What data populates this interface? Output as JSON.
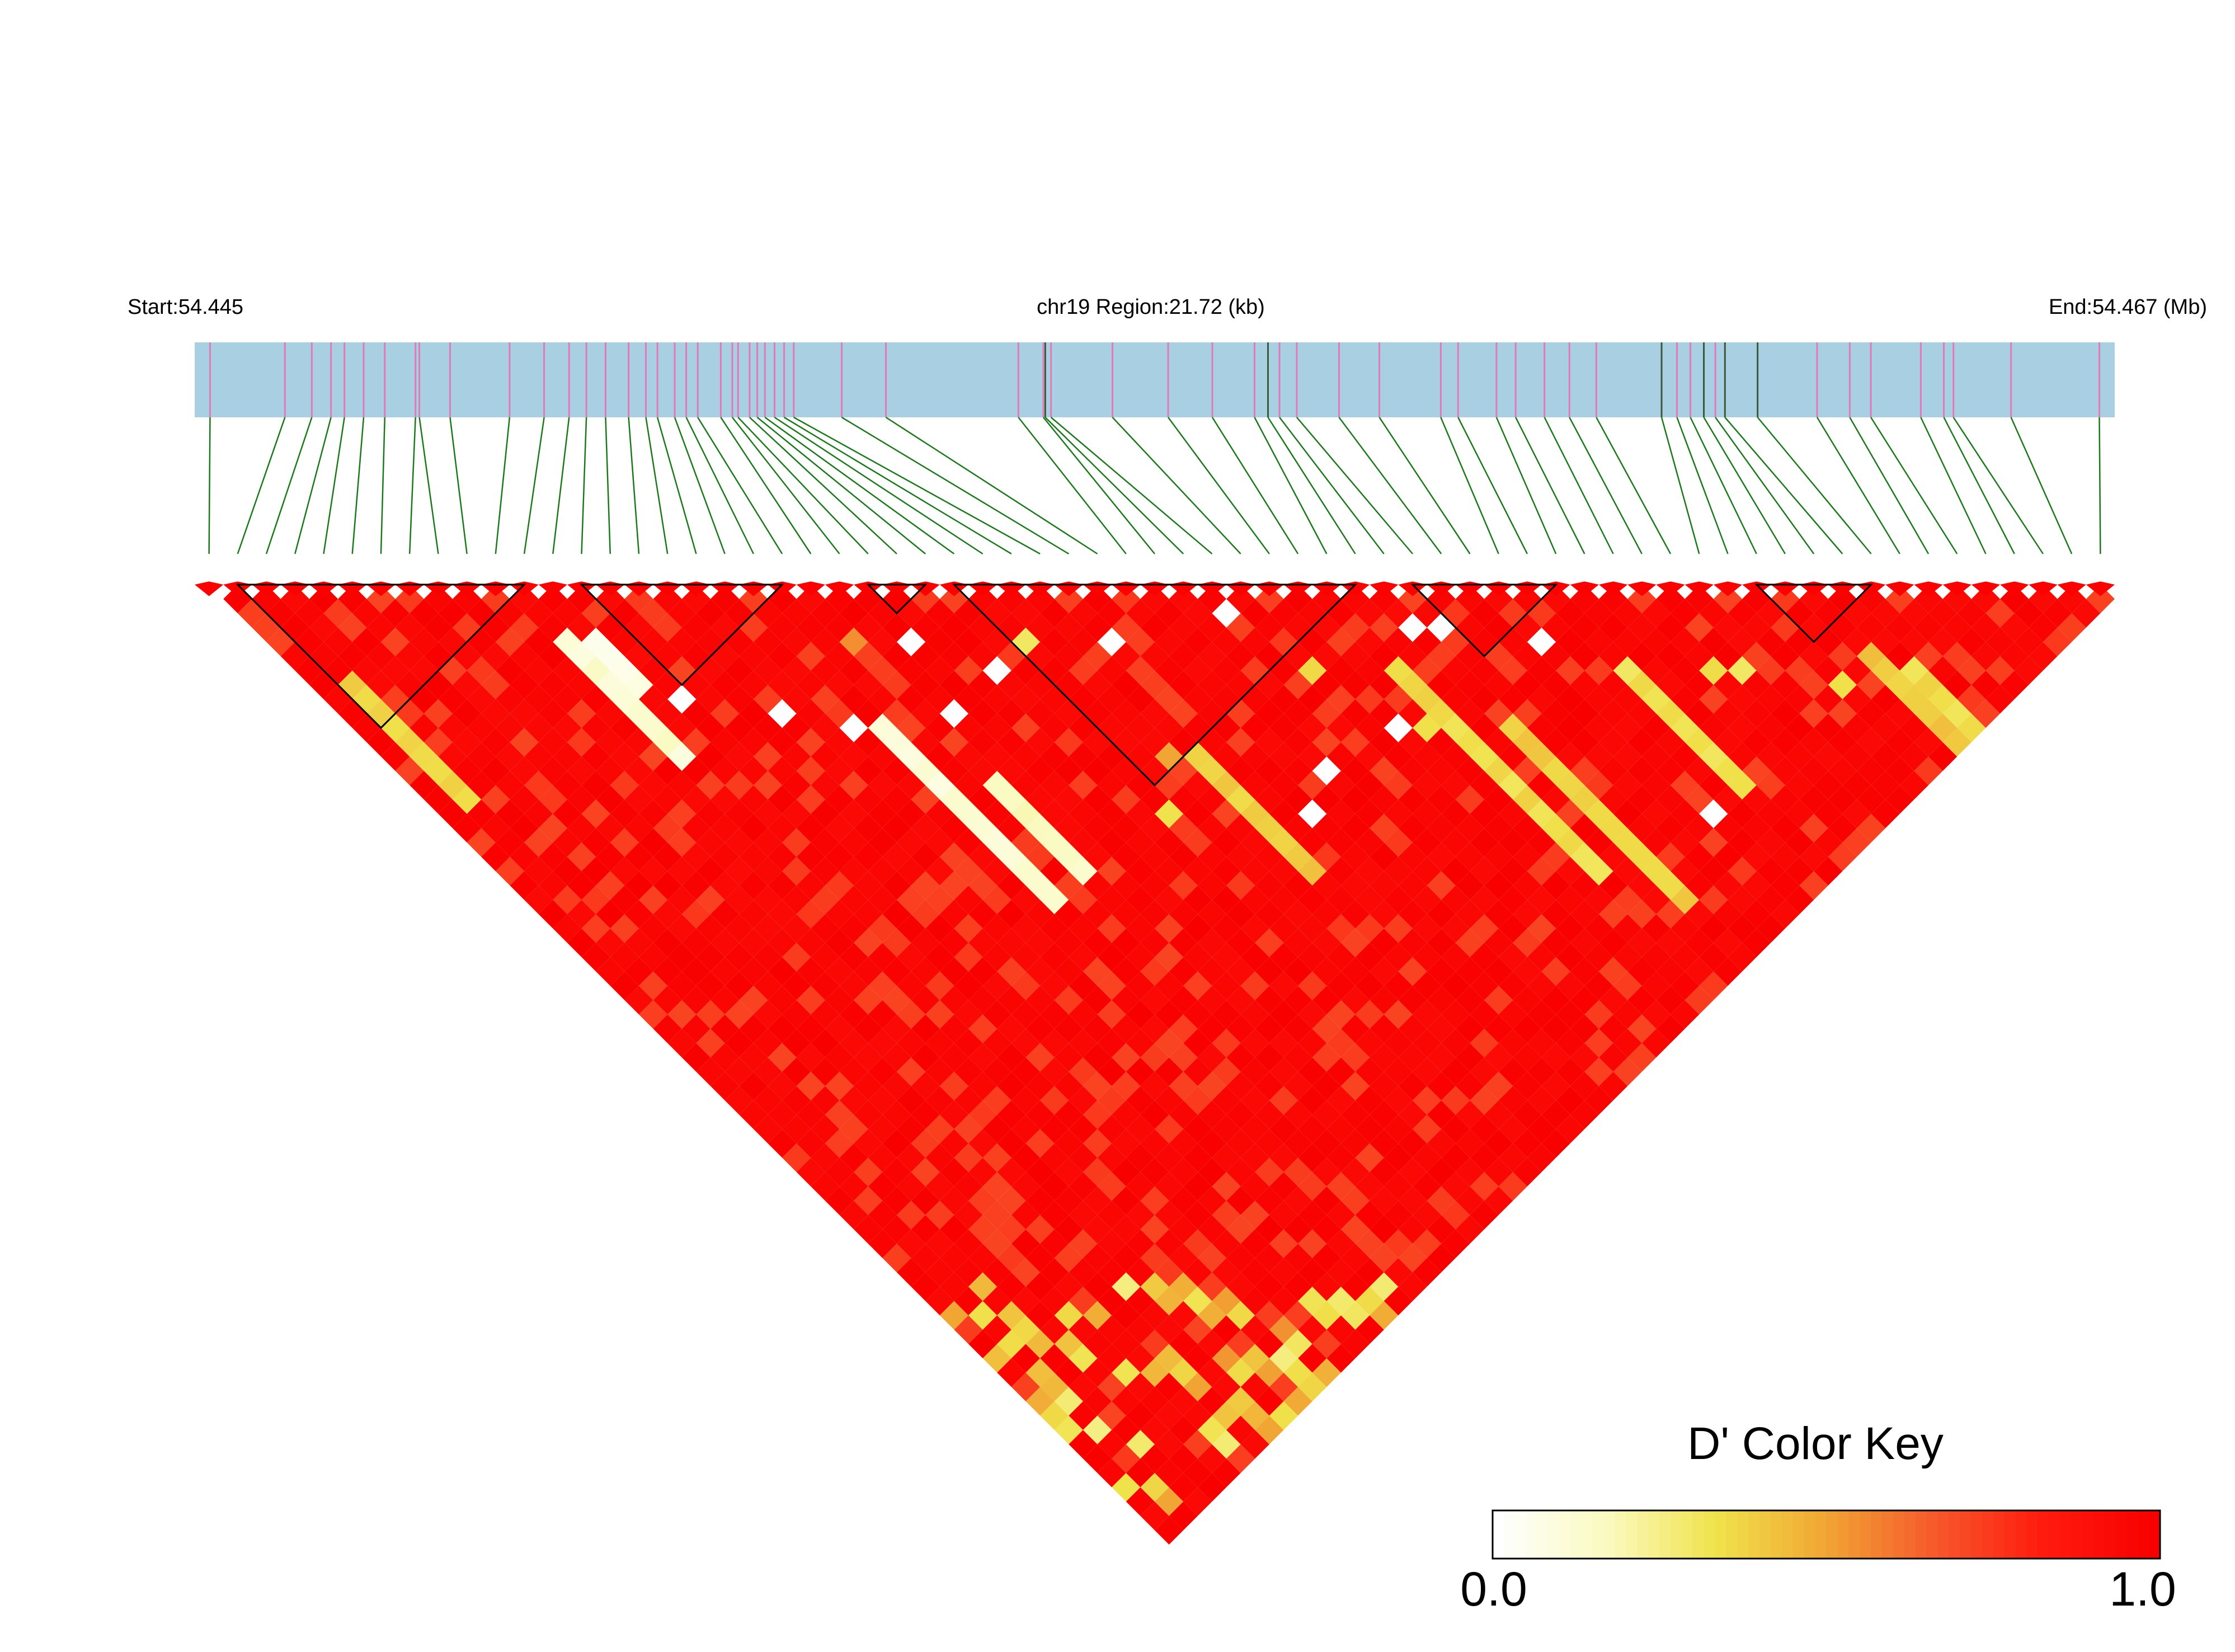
{
  "chart_data": {
    "type": "heatmap",
    "title": "",
    "start_label": "Start:54.445",
    "region_label": "chr19 Region:21.72 (kb)",
    "end_label": "End:54.467 (Mb)",
    "region_start_mb": 54.445,
    "region_end_mb": 54.467,
    "region_size_kb": 21.72,
    "n_snps": 67,
    "snp_track_positions": [
      0.008,
      0.047,
      0.061,
      0.071,
      0.078,
      0.088,
      0.099,
      0.115,
      0.117,
      0.133,
      0.164,
      0.182,
      0.195,
      0.204,
      0.214,
      0.226,
      0.235,
      0.241,
      0.25,
      0.256,
      0.262,
      0.274,
      0.28,
      0.283,
      0.289,
      0.293,
      0.297,
      0.302,
      0.307,
      0.312,
      0.337,
      0.36,
      0.429,
      0.442,
      0.443,
      0.446,
      0.478,
      0.507,
      0.53,
      0.552,
      0.559,
      0.565,
      0.574,
      0.596,
      0.617,
      0.649,
      0.658,
      0.678,
      0.688,
      0.703,
      0.716,
      0.73,
      0.764,
      0.772,
      0.779,
      0.786,
      0.792,
      0.797,
      0.814,
      0.845,
      0.862,
      0.873,
      0.899,
      0.911,
      0.916,
      0.946,
      0.992
    ],
    "dark_snp_indices": [
      34,
      40,
      52,
      55,
      57,
      58
    ],
    "ld_blocks": [
      [
        1,
        11
      ],
      [
        13,
        20
      ],
      [
        23,
        25
      ],
      [
        26,
        40
      ],
      [
        42,
        47
      ],
      [
        54,
        58
      ]
    ],
    "ld_block_note": "pairs are SNP index ranges (inclusive) of outlined haplotype blocks",
    "color_key": {
      "title": "D' Color Key",
      "min_label": "0.0",
      "max_label": "1.0",
      "colors": [
        "#ffffff",
        "#fafac0",
        "#f0e24a",
        "#f1a534",
        "#f6582b",
        "#ff1a0e",
        "#f80000"
      ]
    },
    "d_prime_low_bands": [
      {
        "snp_a": 1,
        "snp_b_from": 8,
        "snp_b_to": 16,
        "d": 0.32
      },
      {
        "snp_a": 10,
        "snp_b_from": 14,
        "snp_b_to": 22,
        "d": 0.08
      },
      {
        "snp_a": 11,
        "snp_b_from": 15,
        "snp_b_to": 18,
        "d": 0.02
      },
      {
        "snp_a": 18,
        "snp_b_from": 28,
        "snp_b_to": 40,
        "d": 0.06
      },
      {
        "snp_a": 38,
        "snp_b_from": 44,
        "snp_b_to": 58,
        "d": 0.3
      },
      {
        "snp_a": 40,
        "snp_b_from": 50,
        "snp_b_to": 62,
        "d": 0.34
      },
      {
        "snp_a": 46,
        "snp_b_from": 52,
        "snp_b_to": 60,
        "d": 0.28
      },
      {
        "snp_a": 55,
        "snp_b_from": 60,
        "snp_b_to": 66,
        "d": 0.36
      },
      {
        "snp_a": 56,
        "snp_b_from": 62,
        "snp_b_to": 66,
        "d": 0.3
      },
      {
        "snp_a": 20,
        "snp_b_from": 34,
        "snp_b_to": 40,
        "d": 0.12
      },
      {
        "snp_a": 28,
        "snp_b_from": 40,
        "snp_b_to": 48,
        "d": 0.35
      }
    ],
    "d_prime_scattered_cells": [
      {
        "a": 22,
        "b": 26,
        "d": 0.0
      },
      {
        "a": 24,
        "b": 30,
        "d": 0.0
      },
      {
        "a": 21,
        "b": 30,
        "d": 0.0
      },
      {
        "a": 29,
        "b": 33,
        "d": 0.0
      },
      {
        "a": 40,
        "b": 43,
        "d": 0.0
      },
      {
        "a": 41,
        "b": 44,
        "d": 0.0
      },
      {
        "a": 44,
        "b": 48,
        "d": 0.0
      },
      {
        "a": 34,
        "b": 36,
        "d": 0.0
      },
      {
        "a": 36,
        "b": 46,
        "d": 0.0
      },
      {
        "a": 44,
        "b": 60,
        "d": 0.0
      },
      {
        "a": 12,
        "b": 20,
        "d": 0.0
      },
      {
        "a": 15,
        "b": 24,
        "d": 0.0
      },
      {
        "a": 17,
        "b": 27,
        "d": 0.0
      },
      {
        "a": 30,
        "b": 46,
        "d": 0.0
      },
      {
        "a": 32,
        "b": 45,
        "d": 0.0
      },
      {
        "a": 26,
        "b": 30,
        "d": 0.3
      },
      {
        "a": 35,
        "b": 41,
        "d": 0.36
      },
      {
        "a": 37,
        "b": 47,
        "d": 0.34
      },
      {
        "a": 25,
        "b": 41,
        "d": 0.33
      },
      {
        "a": 27,
        "b": 39,
        "d": 0.5
      },
      {
        "a": 20,
        "b": 24,
        "d": 0.55
      },
      {
        "a": 50,
        "b": 56,
        "d": 0.3
      },
      {
        "a": 53,
        "b": 60,
        "d": 0.34
      },
      {
        "a": 49,
        "b": 55,
        "d": 0.35
      }
    ]
  }
}
